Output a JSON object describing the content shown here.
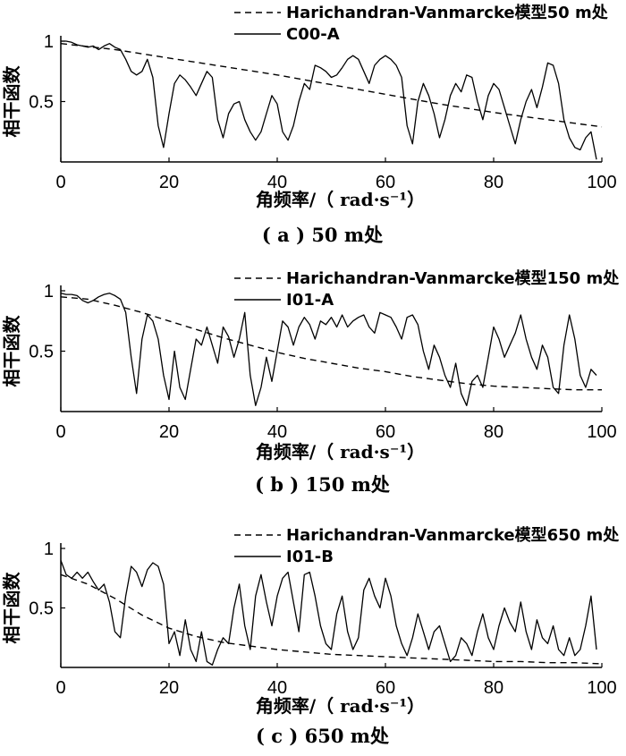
{
  "chart_data": [
    {
      "type": "line",
      "caption": "( a ) 50 m处",
      "xlabel": "角频率/（ rad·s⁻¹）",
      "ylabel": "相干函数",
      "xlim": [
        0,
        100
      ],
      "ylim": [
        0,
        1
      ],
      "xticks": [
        "0",
        "20",
        "40",
        "60",
        "80",
        "100"
      ],
      "yticks": [
        "1",
        "0.5"
      ],
      "legend_position": "top-right",
      "series": [
        {
          "name": "Harichandran-Vanmarcke模型50 m处",
          "style": "dashed",
          "x": [
            0,
            10,
            20,
            30,
            40,
            50,
            60,
            70,
            80,
            90,
            100
          ],
          "y": [
            0.98,
            0.93,
            0.86,
            0.79,
            0.72,
            0.64,
            0.56,
            0.48,
            0.41,
            0.35,
            0.29
          ]
        },
        {
          "name": "C00-A",
          "style": "solid",
          "x": [
            0,
            1,
            2,
            3,
            4,
            5,
            6,
            7,
            8,
            9,
            10,
            11,
            12,
            13,
            14,
            15,
            16,
            17,
            18,
            19,
            20,
            21,
            22,
            23,
            24,
            25,
            26,
            27,
            28,
            29,
            30,
            31,
            32,
            33,
            34,
            35,
            36,
            37,
            38,
            39,
            40,
            41,
            42,
            43,
            44,
            45,
            46,
            47,
            48,
            49,
            50,
            51,
            52,
            53,
            54,
            55,
            56,
            57,
            58,
            59,
            60,
            61,
            62,
            63,
            64,
            65,
            66,
            67,
            68,
            69,
            70,
            71,
            72,
            73,
            74,
            75,
            76,
            77,
            78,
            79,
            80,
            81,
            82,
            83,
            84,
            85,
            86,
            87,
            88,
            89,
            90,
            91,
            92,
            93,
            94,
            95,
            96,
            97,
            98,
            99
          ],
          "y": [
            1.0,
            1.0,
            0.99,
            0.97,
            0.96,
            0.95,
            0.96,
            0.93,
            0.96,
            0.98,
            0.95,
            0.93,
            0.85,
            0.75,
            0.72,
            0.75,
            0.85,
            0.7,
            0.3,
            0.12,
            0.4,
            0.65,
            0.72,
            0.68,
            0.62,
            0.55,
            0.65,
            0.75,
            0.7,
            0.35,
            0.2,
            0.4,
            0.48,
            0.5,
            0.35,
            0.25,
            0.18,
            0.25,
            0.4,
            0.55,
            0.48,
            0.25,
            0.18,
            0.3,
            0.5,
            0.65,
            0.6,
            0.8,
            0.78,
            0.75,
            0.7,
            0.72,
            0.78,
            0.85,
            0.88,
            0.85,
            0.75,
            0.65,
            0.8,
            0.85,
            0.88,
            0.85,
            0.8,
            0.7,
            0.3,
            0.15,
            0.5,
            0.65,
            0.55,
            0.4,
            0.2,
            0.35,
            0.55,
            0.65,
            0.58,
            0.72,
            0.7,
            0.5,
            0.35,
            0.55,
            0.65,
            0.6,
            0.45,
            0.3,
            0.15,
            0.35,
            0.5,
            0.6,
            0.45,
            0.62,
            0.82,
            0.8,
            0.65,
            0.35,
            0.2,
            0.12,
            0.1,
            0.2,
            0.25,
            0.02
          ]
        }
      ]
    },
    {
      "type": "line",
      "caption": "( b ) 150 m处",
      "xlabel": "角频率/（ rad·s⁻¹）",
      "ylabel": "相干函数",
      "xlim": [
        0,
        100
      ],
      "ylim": [
        0,
        1
      ],
      "xticks": [
        "0",
        "20",
        "40",
        "60",
        "80",
        "100"
      ],
      "yticks": [
        "1",
        "0.5"
      ],
      "legend_position": "top-right",
      "series": [
        {
          "name": "Harichandran-Vanmarcke模型150 m处",
          "style": "dashed",
          "x": [
            0,
            5,
            10,
            15,
            20,
            25,
            30,
            35,
            40,
            45,
            50,
            55,
            60,
            65,
            70,
            75,
            80,
            85,
            90,
            95,
            100
          ],
          "y": [
            0.95,
            0.93,
            0.88,
            0.82,
            0.75,
            0.68,
            0.61,
            0.55,
            0.49,
            0.44,
            0.4,
            0.36,
            0.33,
            0.29,
            0.26,
            0.23,
            0.21,
            0.2,
            0.19,
            0.18,
            0.18
          ]
        },
        {
          "name": "I01-A",
          "style": "solid",
          "x": [
            0,
            1,
            2,
            3,
            4,
            5,
            6,
            7,
            8,
            9,
            10,
            11,
            12,
            13,
            14,
            15,
            16,
            17,
            18,
            19,
            20,
            21,
            22,
            23,
            24,
            25,
            26,
            27,
            28,
            29,
            30,
            31,
            32,
            33,
            34,
            35,
            36,
            37,
            38,
            39,
            40,
            41,
            42,
            43,
            44,
            45,
            46,
            47,
            48,
            49,
            50,
            51,
            52,
            53,
            54,
            55,
            56,
            57,
            58,
            59,
            60,
            61,
            62,
            63,
            64,
            65,
            66,
            67,
            68,
            69,
            70,
            71,
            72,
            73,
            74,
            75,
            76,
            77,
            78,
            79,
            80,
            81,
            82,
            83,
            84,
            85,
            86,
            87,
            88,
            89,
            90,
            91,
            92,
            93,
            94,
            95,
            96,
            97,
            98,
            99
          ],
          "y": [
            0.98,
            0.97,
            0.97,
            0.96,
            0.92,
            0.9,
            0.92,
            0.95,
            0.97,
            0.98,
            0.96,
            0.93,
            0.82,
            0.45,
            0.15,
            0.6,
            0.8,
            0.75,
            0.6,
            0.3,
            0.1,
            0.5,
            0.2,
            0.1,
            0.35,
            0.6,
            0.55,
            0.7,
            0.55,
            0.4,
            0.7,
            0.62,
            0.45,
            0.6,
            0.82,
            0.3,
            0.05,
            0.2,
            0.45,
            0.25,
            0.5,
            0.75,
            0.7,
            0.55,
            0.7,
            0.78,
            0.72,
            0.6,
            0.75,
            0.72,
            0.78,
            0.7,
            0.8,
            0.7,
            0.75,
            0.78,
            0.8,
            0.7,
            0.65,
            0.82,
            0.8,
            0.78,
            0.7,
            0.6,
            0.78,
            0.8,
            0.72,
            0.5,
            0.35,
            0.55,
            0.45,
            0.3,
            0.2,
            0.4,
            0.15,
            0.05,
            0.25,
            0.3,
            0.2,
            0.45,
            0.7,
            0.6,
            0.45,
            0.55,
            0.65,
            0.8,
            0.6,
            0.45,
            0.35,
            0.55,
            0.45,
            0.2,
            0.15,
            0.55,
            0.8,
            0.6,
            0.3,
            0.2,
            0.35,
            0.3
          ]
        }
      ]
    },
    {
      "type": "line",
      "caption": "( c ) 650 m处",
      "xlabel": "角频率/（ rad·s⁻¹）",
      "ylabel": "相干函数",
      "xlim": [
        0,
        100
      ],
      "ylim": [
        0,
        1
      ],
      "xticks": [
        "0",
        "20",
        "40",
        "60",
        "80",
        "100"
      ],
      "yticks": [
        "1",
        "0.5"
      ],
      "legend_position": "top-right",
      "series": [
        {
          "name": "Harichandran-Vanmarcke模型650 m处",
          "style": "dashed",
          "x": [
            0,
            5,
            10,
            15,
            20,
            25,
            30,
            35,
            40,
            45,
            50,
            55,
            60,
            65,
            70,
            75,
            80,
            85,
            90,
            95,
            100
          ],
          "y": [
            0.78,
            0.7,
            0.58,
            0.44,
            0.33,
            0.26,
            0.21,
            0.18,
            0.15,
            0.13,
            0.11,
            0.1,
            0.09,
            0.08,
            0.07,
            0.06,
            0.05,
            0.05,
            0.04,
            0.04,
            0.03
          ]
        },
        {
          "name": "I01-B",
          "style": "solid",
          "x": [
            0,
            1,
            2,
            3,
            4,
            5,
            6,
            7,
            8,
            9,
            10,
            11,
            12,
            13,
            14,
            15,
            16,
            17,
            18,
            19,
            20,
            21,
            22,
            23,
            24,
            25,
            26,
            27,
            28,
            29,
            30,
            31,
            32,
            33,
            34,
            35,
            36,
            37,
            38,
            39,
            40,
            41,
            42,
            43,
            44,
            45,
            46,
            47,
            48,
            49,
            50,
            51,
            52,
            53,
            54,
            55,
            56,
            57,
            58,
            59,
            60,
            61,
            62,
            63,
            64,
            65,
            66,
            67,
            68,
            69,
            70,
            71,
            72,
            73,
            74,
            75,
            76,
            77,
            78,
            79,
            80,
            81,
            82,
            83,
            84,
            85,
            86,
            87,
            88,
            89,
            90,
            91,
            92,
            93,
            94,
            95,
            96,
            97,
            98,
            99
          ],
          "y": [
            0.9,
            0.78,
            0.75,
            0.8,
            0.75,
            0.8,
            0.72,
            0.65,
            0.7,
            0.55,
            0.3,
            0.25,
            0.6,
            0.85,
            0.8,
            0.68,
            0.82,
            0.88,
            0.85,
            0.7,
            0.2,
            0.3,
            0.1,
            0.4,
            0.15,
            0.05,
            0.3,
            0.05,
            0.02,
            0.15,
            0.25,
            0.2,
            0.5,
            0.7,
            0.35,
            0.15,
            0.6,
            0.78,
            0.55,
            0.35,
            0.6,
            0.75,
            0.8,
            0.55,
            0.3,
            0.78,
            0.8,
            0.6,
            0.35,
            0.2,
            0.15,
            0.45,
            0.6,
            0.3,
            0.15,
            0.25,
            0.65,
            0.75,
            0.6,
            0.5,
            0.75,
            0.6,
            0.35,
            0.2,
            0.1,
            0.25,
            0.45,
            0.3,
            0.15,
            0.3,
            0.35,
            0.2,
            0.05,
            0.1,
            0.25,
            0.2,
            0.1,
            0.3,
            0.45,
            0.25,
            0.15,
            0.35,
            0.5,
            0.38,
            0.3,
            0.55,
            0.3,
            0.15,
            0.4,
            0.25,
            0.2,
            0.35,
            0.15,
            0.1,
            0.25,
            0.1,
            0.15,
            0.35,
            0.6,
            0.15
          ]
        }
      ]
    }
  ]
}
